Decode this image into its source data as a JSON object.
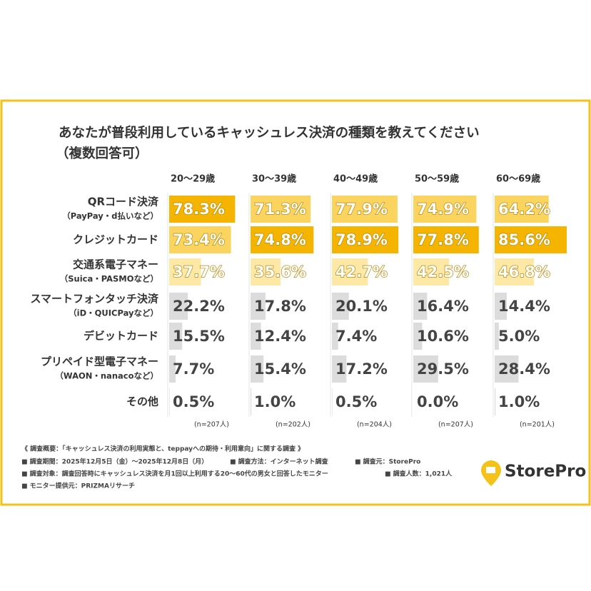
{
  "chart_data": {
    "type": "bar",
    "title": "あなたが普段利用しているキャッシュレス決済の種類を教えてください",
    "subtitle": "（複数回答可）",
    "categories": [
      {
        "label": "QRコード決済",
        "note": "（PayPay・d払いなど）"
      },
      {
        "label": "クレジットカード"
      },
      {
        "label": "交通系電子マネー",
        "note": "（Suica・PASMOなど）"
      },
      {
        "label": "スマートフォンタッチ決済",
        "note": "（iD・QUICPayなど）"
      },
      {
        "label": "デビットカード"
      },
      {
        "label": "プリペイド型電子マネー",
        "note": "（WAON・nanacoなど）"
      },
      {
        "label": "その他"
      }
    ],
    "category_colors": [
      "#fad45e",
      "#fad45e",
      "#fde8a6",
      "#dcdcdc",
      "#dcdcdc",
      "#dcdcdc",
      "#dcdcdc"
    ],
    "highlight_color": "#f5b400",
    "xlim": [
      0,
      100
    ],
    "series": [
      {
        "name": "20〜29歳",
        "n_label": "(n=207人)",
        "values": [
          78.3,
          73.4,
          37.7,
          22.2,
          15.5,
          7.7,
          0.5
        ],
        "value_labels": [
          "78.3%",
          "73.4%",
          "37.7%",
          "22.2%",
          "15.5%",
          "7.7%",
          "0.5%"
        ]
      },
      {
        "name": "30〜39歳",
        "n_label": "(n=202人)",
        "values": [
          71.3,
          74.8,
          35.6,
          17.8,
          12.4,
          15.4,
          1.0
        ],
        "value_labels": [
          "71.3%",
          "74.8%",
          "35.6%",
          "17.8%",
          "12.4%",
          "15.4%",
          "1.0%"
        ]
      },
      {
        "name": "40〜49歳",
        "n_label": "(n=204人)",
        "values": [
          77.9,
          78.9,
          42.7,
          20.1,
          7.4,
          17.2,
          0.5
        ],
        "value_labels": [
          "77.9%",
          "78.9%",
          "42.7%",
          "20.1%",
          "7.4%",
          "17.2%",
          "0.5%"
        ]
      },
      {
        "name": "50〜59歳",
        "n_label": "(n=207人)",
        "values": [
          74.9,
          77.8,
          42.5,
          16.4,
          10.6,
          29.5,
          0.0
        ],
        "value_labels": [
          "74.9%",
          "77.8%",
          "42.5%",
          "16.4%",
          "10.6%",
          "29.5%",
          "0.0%"
        ]
      },
      {
        "name": "60〜69歳",
        "n_label": "(n=201人)",
        "values": [
          64.2,
          85.6,
          46.8,
          14.4,
          5.0,
          28.4,
          1.0
        ],
        "value_labels": [
          "64.2%",
          "85.6%",
          "46.8%",
          "14.4%",
          "5.0%",
          "28.4%",
          "1.0%"
        ]
      }
    ]
  },
  "footer": [
    [
      "《 調査概要：「キャッシュレス決済の利用実態と、teppayへの期待・利用意向」に関する調査 》"
    ],
    [
      "■ 調査期間：2025年12月5日（金）〜2025年12月8日（月）",
      "■ 調査方法：インターネット調査",
      "■ 調査元：StorePro"
    ],
    [
      "■ 調査対象：調査回答時にキャッシュレス決済を月1回以上利用する20〜60代の男女と回答したモニター",
      "■ 調査人数：1,021人"
    ],
    [
      "■ モニター提供元：PRIZMAリサーチ"
    ]
  ],
  "logo_text": "StorePro"
}
